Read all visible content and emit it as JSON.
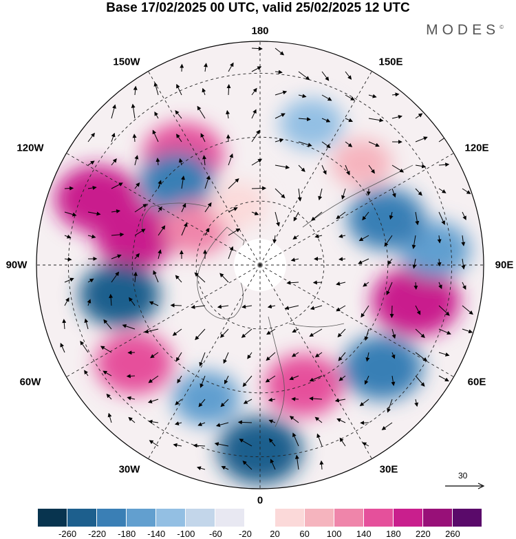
{
  "title": "Base 17/02/2025 00 UTC, valid 25/02/2025 12 UTC",
  "brand": "MODES",
  "brand_mark": "©",
  "lon_labels": {
    "n180": "180",
    "w150": "150W",
    "e150": "150E",
    "w120": "120W",
    "e120": "120E",
    "w90": "90W",
    "e90": "90E",
    "w60": "60W",
    "e60": "60E",
    "w30": "30W",
    "e30": "30E",
    "s0": "0"
  },
  "reference_vector": "30",
  "colorbar": {
    "colors": [
      "#08344f",
      "#1d5f8d",
      "#3a7fb5",
      "#629fcf",
      "#93bfe3",
      "#c3d6ea",
      "#e8e8f2",
      "#ffffff",
      "#fbd9d9",
      "#f5b4be",
      "#ef85aa",
      "#e5509b",
      "#c91f8d",
      "#981078",
      "#5a0a6a"
    ],
    "ticks": [
      "-260",
      "-220",
      "-180",
      "-140",
      "-100",
      "-60",
      "-20",
      "20",
      "60",
      "100",
      "140",
      "180",
      "220",
      "260"
    ]
  },
  "anomaly_centers": [
    {
      "lon": -145,
      "lat": 48,
      "value": 200,
      "color": "#e5509b"
    },
    {
      "lon": -135,
      "lat": 53,
      "value": -160,
      "color": "#3a7fb5"
    },
    {
      "lon": 160,
      "lat": 43,
      "value": -100,
      "color": "#93bfe3"
    },
    {
      "lon": -112,
      "lat": 35,
      "value": 220,
      "color": "#c91f8d"
    },
    {
      "lon": -103,
      "lat": 50,
      "value": 200,
      "color": "#c91f8d"
    },
    {
      "lon": -78,
      "lat": 45,
      "value": -200,
      "color": "#1d5f8d"
    },
    {
      "lon": -52,
      "lat": 40,
      "value": 180,
      "color": "#e5509b"
    },
    {
      "lon": -22,
      "lat": 45,
      "value": -120,
      "color": "#629fcf"
    },
    {
      "lon": 0,
      "lat": 32,
      "value": -220,
      "color": "#1d5f8d"
    },
    {
      "lon": 20,
      "lat": 50,
      "value": 180,
      "color": "#e5509b"
    },
    {
      "lon": 50,
      "lat": 40,
      "value": -200,
      "color": "#3a7fb5"
    },
    {
      "lon": 77,
      "lat": 40,
      "value": 240,
      "color": "#c91f8d"
    },
    {
      "lon": 95,
      "lat": 35,
      "value": -140,
      "color": "#629fcf"
    },
    {
      "lon": 110,
      "lat": 48,
      "value": -180,
      "color": "#3a7fb5"
    },
    {
      "lon": 135,
      "lat": 45,
      "value": 80,
      "color": "#f5b4be"
    },
    {
      "lon": -120,
      "lat": 67,
      "value": 120,
      "color": "#ef85aa"
    },
    {
      "lon": -160,
      "lat": 70,
      "value": 60,
      "color": "#fbd9d9"
    }
  ]
}
